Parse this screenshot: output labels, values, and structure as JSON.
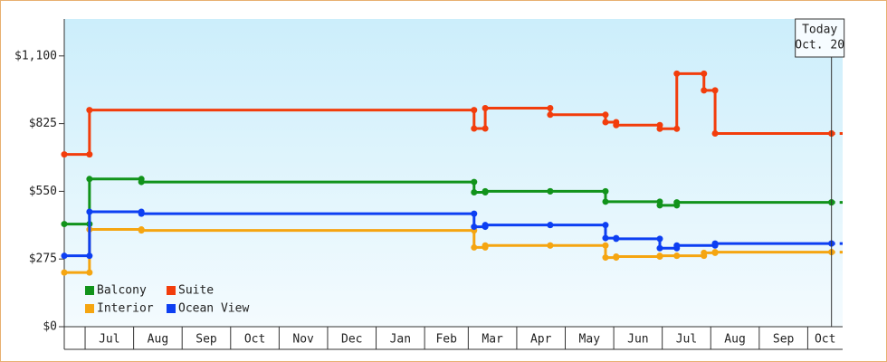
{
  "chart_data": {
    "type": "step-line",
    "ylim": [
      0,
      1250
    ],
    "yticks": [
      {
        "value": 0,
        "label": "$0"
      },
      {
        "value": 275,
        "label": "$275"
      },
      {
        "value": 550,
        "label": "$550"
      },
      {
        "value": 825,
        "label": "$825"
      },
      {
        "value": 1100,
        "label": "$1,100"
      }
    ],
    "xlim": [
      -0.43,
      15.62
    ],
    "xticks": [
      {
        "value": 0,
        "label": "Jul"
      },
      {
        "value": 1,
        "label": "Aug"
      },
      {
        "value": 2,
        "label": "Sep"
      },
      {
        "value": 3,
        "label": "Oct"
      },
      {
        "value": 4,
        "label": "Nov"
      },
      {
        "value": 5,
        "label": "Dec"
      },
      {
        "value": 6,
        "label": "Jan"
      },
      {
        "value": 7,
        "label": "Feb"
      },
      {
        "value": 7.9,
        "label": "Mar"
      },
      {
        "value": 8.9,
        "label": "Apr"
      },
      {
        "value": 9.9,
        "label": "May"
      },
      {
        "value": 10.9,
        "label": "Jun"
      },
      {
        "value": 11.9,
        "label": "Jul"
      },
      {
        "value": 12.9,
        "label": "Aug"
      },
      {
        "value": 13.9,
        "label": "Sep"
      },
      {
        "value": 14.9,
        "label": "Oct"
      }
    ],
    "annotation": {
      "x": 15.39,
      "lines": [
        "Today",
        "Oct. 20"
      ]
    },
    "series": [
      {
        "name": "Balcony",
        "color": "#11931b",
        "x": [
          -0.43,
          0.09,
          1.16,
          8.02,
          8.25,
          9.59,
          10.73,
          11.85,
          12.2,
          15.39
        ],
        "values": [
          417,
          600,
          588,
          546,
          550,
          550,
          508,
          493,
          505,
          505
        ]
      },
      {
        "name": "Suite",
        "color": "#f23d0c",
        "x": [
          -0.43,
          0.09,
          8.02,
          8.25,
          9.59,
          10.73,
          10.95,
          11.85,
          12.2,
          12.76,
          12.99,
          15.39
        ],
        "values": [
          700,
          880,
          805,
          888,
          861,
          831,
          819,
          804,
          1028,
          960,
          785,
          785
        ]
      },
      {
        "name": "Interior",
        "color": "#f5a511",
        "x": [
          -0.43,
          0.09,
          1.16,
          8.02,
          8.25,
          9.59,
          10.73,
          10.95,
          11.85,
          12.2,
          12.76,
          12.99,
          15.39
        ],
        "values": [
          220,
          395,
          391,
          322,
          330,
          330,
          281,
          285,
          288,
          288,
          300,
          303,
          303
        ]
      },
      {
        "name": "Ocean View",
        "color": "#0d3ff2",
        "x": [
          -0.43,
          0.09,
          1.16,
          8.02,
          8.25,
          9.59,
          10.73,
          10.95,
          11.85,
          12.2,
          12.99,
          15.39
        ],
        "values": [
          288,
          467,
          459,
          406,
          413,
          413,
          360,
          357,
          319,
          330,
          338,
          338
        ]
      }
    ]
  }
}
